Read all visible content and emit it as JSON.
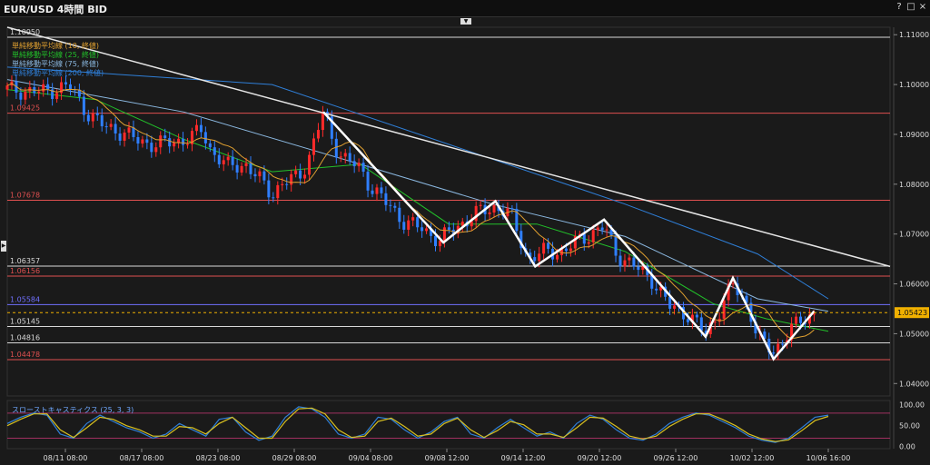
{
  "window": {
    "title": "EUR/USD 4時間 BID",
    "help_icon": "?",
    "restore_icon": "□",
    "close_icon": "×"
  },
  "indicators": {
    "ma": [
      {
        "label": "単純移動平均線 (10, 終値)",
        "color": "#e0a030"
      },
      {
        "label": "単純移動平均線 (25, 終値)",
        "color": "#22c02a"
      },
      {
        "label": "単純移動平均線 (75, 終値)",
        "color": "#8bb8e0"
      },
      {
        "label": "単純移動平均線 (200, 終値)",
        "color": "#2f7fd8"
      }
    ],
    "stoch_label": "スローストキャスティクス (25, 3, 3)"
  },
  "colors": {
    "background": "#1a1a1a",
    "up_candle": "#ff2a2a",
    "down_candle": "#2f7fff",
    "trendline": "#e6e6e6",
    "current_price": "#f0b000"
  },
  "chart_data": [
    {
      "type": "candlestick",
      "symbol": "EUR/USD",
      "timeframe": "4時間",
      "price_type": "BID",
      "ylim": [
        1.0375,
        1.1115
      ],
      "y_ticks": [
        "1.11000",
        "1.10000",
        "1.09000",
        "1.08000",
        "1.07000",
        "1.06000",
        "1.05000",
        "1.04000"
      ],
      "y_tick_values": [
        1.11,
        1.1,
        1.09,
        1.08,
        1.07,
        1.06,
        1.05,
        1.04
      ],
      "x_ticks": [
        "08/11 08:00",
        "08/17 08:00",
        "08/23 08:00",
        "08/29 08:00",
        "09/04 08:00",
        "09/08 12:00",
        "09/14 12:00",
        "09/20 12:00",
        "09/26 12:00",
        "10/02 12:00",
        "10/06 16:00"
      ],
      "horizontal_levels": [
        {
          "label": "1.10950",
          "value": 1.1095,
          "color": "#d8d8d8"
        },
        {
          "label": "1.09425",
          "value": 1.09425,
          "color": "#e05050"
        },
        {
          "label": "1.07678",
          "value": 1.07678,
          "color": "#e05050"
        },
        {
          "label": "1.06357",
          "value": 1.06357,
          "color": "#d8d8d8"
        },
        {
          "label": "1.06156",
          "value": 1.06156,
          "color": "#e05050"
        },
        {
          "label": "1.05584",
          "value": 1.05584,
          "color": "#7070ff"
        },
        {
          "label": "1.05145",
          "value": 1.05145,
          "color": "#d8d8d8"
        },
        {
          "label": "1.04816",
          "value": 1.04816,
          "color": "#d8d8d8"
        },
        {
          "label": "1.04478",
          "value": 1.04478,
          "color": "#e05050"
        }
      ],
      "current_price": {
        "label": "1.05423",
        "value": 1.05423
      },
      "trendline": [
        [
          0.0,
          1.1115
        ],
        [
          1.0,
          1.0635
        ]
      ],
      "zigzag": [
        {
          "x": 0.358,
          "y": 1.0945
        },
        {
          "x": 0.494,
          "y": 1.0683
        },
        {
          "x": 0.553,
          "y": 1.0766
        },
        {
          "x": 0.598,
          "y": 1.0635
        },
        {
          "x": 0.676,
          "y": 1.0729
        },
        {
          "x": 0.791,
          "y": 1.0494
        },
        {
          "x": 0.822,
          "y": 1.0612
        },
        {
          "x": 0.868,
          "y": 1.0449
        },
        {
          "x": 0.914,
          "y": 1.0545
        }
      ],
      "price_path": [
        [
          0.0,
          1.099
        ],
        [
          0.04,
          1.0985
        ],
        [
          0.07,
          1.0998
        ],
        [
          0.09,
          1.0945
        ],
        [
          0.11,
          1.0915
        ],
        [
          0.13,
          1.0905
        ],
        [
          0.15,
          1.0885
        ],
        [
          0.17,
          1.088
        ],
        [
          0.19,
          1.0885
        ],
        [
          0.21,
          1.0895
        ],
        [
          0.22,
          1.091
        ],
        [
          0.23,
          1.087
        ],
        [
          0.25,
          1.0835
        ],
        [
          0.27,
          1.084
        ],
        [
          0.29,
          1.08
        ],
        [
          0.3,
          1.078
        ],
        [
          0.31,
          1.08
        ],
        [
          0.33,
          1.0815
        ],
        [
          0.34,
          1.0845
        ],
        [
          0.358,
          1.0945
        ],
        [
          0.37,
          1.088
        ],
        [
          0.38,
          1.0855
        ],
        [
          0.4,
          1.083
        ],
        [
          0.41,
          1.08
        ],
        [
          0.43,
          1.076
        ],
        [
          0.45,
          1.0725
        ],
        [
          0.47,
          1.071
        ],
        [
          0.49,
          1.0688
        ],
        [
          0.51,
          1.0715
        ],
        [
          0.53,
          1.074
        ],
        [
          0.553,
          1.0755
        ],
        [
          0.57,
          1.074
        ],
        [
          0.59,
          1.065
        ],
        [
          0.61,
          1.0665
        ],
        [
          0.63,
          1.0665
        ],
        [
          0.65,
          1.069
        ],
        [
          0.676,
          1.0715
        ],
        [
          0.69,
          1.066
        ],
        [
          0.71,
          1.0635
        ],
        [
          0.73,
          1.061
        ],
        [
          0.75,
          1.0555
        ],
        [
          0.77,
          1.054
        ],
        [
          0.791,
          1.05
        ],
        [
          0.8,
          1.0525
        ],
        [
          0.822,
          1.0598
        ],
        [
          0.84,
          1.0555
        ],
        [
          0.85,
          1.049
        ],
        [
          0.868,
          1.0465
        ],
        [
          0.88,
          1.049
        ],
        [
          0.9,
          1.053
        ],
        [
          0.914,
          1.054
        ]
      ],
      "ma_200": [
        [
          0.0,
          1.1035
        ],
        [
          0.3,
          1.1
        ],
        [
          0.5,
          1.088
        ],
        [
          0.7,
          1.076
        ],
        [
          0.85,
          1.066
        ],
        [
          0.93,
          1.057
        ]
      ],
      "ma_75": [
        [
          0.0,
          1.101
        ],
        [
          0.2,
          1.0945
        ],
        [
          0.4,
          1.084
        ],
        [
          0.55,
          1.076
        ],
        [
          0.7,
          1.0695
        ],
        [
          0.85,
          1.057
        ],
        [
          0.93,
          1.0545
        ]
      ],
      "ma_25": [
        [
          0.0,
          1.099
        ],
        [
          0.1,
          1.097
        ],
        [
          0.2,
          1.089
        ],
        [
          0.3,
          1.0825
        ],
        [
          0.4,
          1.084
        ],
        [
          0.5,
          1.072
        ],
        [
          0.6,
          1.072
        ],
        [
          0.7,
          1.0665
        ],
        [
          0.8,
          1.056
        ],
        [
          0.86,
          1.053
        ],
        [
          0.93,
          1.0505
        ]
      ]
    },
    {
      "type": "line",
      "title": "スローストキャスティクス (25, 3, 3)",
      "ylim": [
        -5,
        110
      ],
      "y_ticks": [
        "100.00",
        "50.00",
        "0.00"
      ],
      "y_tick_values": [
        100,
        50,
        0
      ],
      "levels": [
        80,
        20
      ],
      "series": [
        {
          "color": "#2f7fd8",
          "values": [
            55,
            70,
            80,
            75,
            30,
            20,
            55,
            75,
            60,
            45,
            35,
            20,
            30,
            55,
            40,
            25,
            65,
            70,
            35,
            15,
            25,
            70,
            95,
            90,
            70,
            30,
            20,
            30,
            70,
            65,
            40,
            20,
            35,
            60,
            70,
            30,
            20,
            45,
            65,
            45,
            25,
            35,
            20,
            55,
            75,
            65,
            40,
            20,
            15,
            30,
            55,
            70,
            80,
            75,
            60,
            45,
            25,
            15,
            10,
            20,
            45,
            70,
            75
          ]
        },
        {
          "color": "#d8c020",
          "values": [
            50,
            65,
            78,
            78,
            40,
            22,
            45,
            70,
            65,
            50,
            40,
            25,
            25,
            48,
            45,
            30,
            55,
            70,
            45,
            20,
            20,
            60,
            90,
            92,
            78,
            40,
            22,
            25,
            60,
            68,
            48,
            25,
            30,
            55,
            68,
            40,
            22,
            38,
            60,
            52,
            30,
            30,
            22,
            45,
            70,
            68,
            48,
            25,
            18,
            25,
            48,
            65,
            78,
            78,
            65,
            50,
            30,
            18,
            12,
            16,
            38,
            62,
            72
          ]
        }
      ]
    }
  ]
}
